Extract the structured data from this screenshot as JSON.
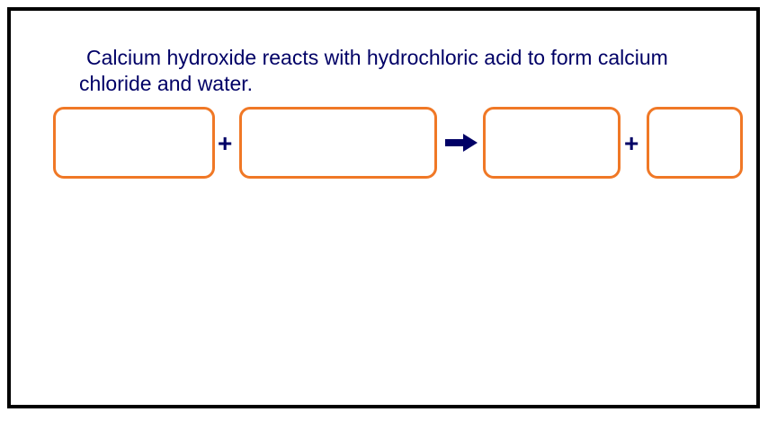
{
  "question": {
    "text": "Calcium hydroxide reacts with hydrochloric acid to form calcium chloride and water."
  },
  "equation": {
    "reactant_1": "",
    "reactant_2": "",
    "product_1": "",
    "product_2": "",
    "plus_symbol": "+",
    "arrow_icon": "right-arrow-icon"
  },
  "colors": {
    "text": "#000066",
    "box_border": "#f07826",
    "frame_border": "#000000"
  }
}
